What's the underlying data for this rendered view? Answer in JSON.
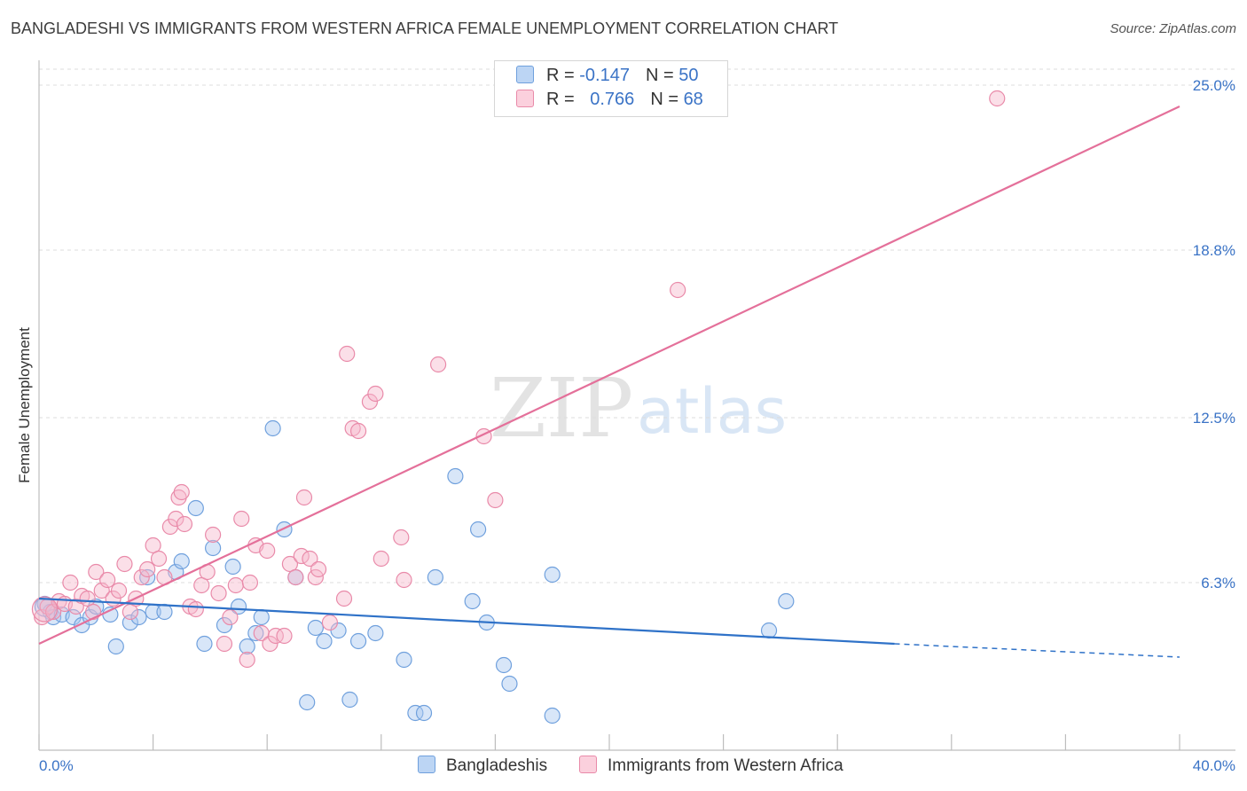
{
  "title": "BANGLADESHI VS IMMIGRANTS FROM WESTERN AFRICA FEMALE UNEMPLOYMENT CORRELATION CHART",
  "source": "Source: ZipAtlas.com",
  "watermark": {
    "zip": "ZIP",
    "atlas": "atlas"
  },
  "legend": {
    "rows": [
      {
        "r_label": "R = ",
        "r_value": "-0.147",
        "n_label": "N = ",
        "n_value": "50",
        "color": "#a9c8f0"
      },
      {
        "r_label": "R = ",
        "r_value": "0.766",
        "n_label": "N = ",
        "n_value": "68",
        "color": "#f6b8cc"
      }
    ]
  },
  "chart_data": {
    "type": "scatter",
    "title": "BANGLADESHI VS IMMIGRANTS FROM WESTERN AFRICA FEMALE UNEMPLOYMENT CORRELATION CHART",
    "xlabel": "",
    "ylabel": "Female Unemployment",
    "xlim": [
      0,
      40
    ],
    "ylim": [
      0,
      25.6
    ],
    "x_tick_labels": [
      "0.0%",
      "40.0%"
    ],
    "y_ticks": [
      6.3,
      12.5,
      18.8,
      25.0
    ],
    "y_tick_labels": [
      "6.3%",
      "12.5%",
      "18.8%",
      "25.0%"
    ],
    "grid": true,
    "series": [
      {
        "name": "Bangladeshis",
        "color": "#a9c8f0",
        "stroke": "#6fa0dd",
        "line_color": "#2f72c8",
        "trend": {
          "x0": 0,
          "y0": 5.7,
          "x1": 30,
          "y1": 4.0,
          "dash_x1": 40,
          "dash_y1": 3.5
        },
        "points": [
          [
            0.2,
            5.5
          ],
          [
            0.4,
            5.2
          ],
          [
            0.5,
            5.0
          ],
          [
            0.8,
            5.1
          ],
          [
            1.2,
            5.0
          ],
          [
            1.5,
            4.7
          ],
          [
            1.8,
            5.0
          ],
          [
            2.0,
            5.4
          ],
          [
            2.5,
            5.1
          ],
          [
            2.7,
            3.9
          ],
          [
            3.2,
            4.8
          ],
          [
            3.5,
            5.0
          ],
          [
            3.8,
            6.5
          ],
          [
            4.0,
            5.2
          ],
          [
            4.4,
            5.2
          ],
          [
            4.8,
            6.7
          ],
          [
            5.0,
            7.1
          ],
          [
            5.5,
            9.1
          ],
          [
            5.8,
            4.0
          ],
          [
            6.1,
            7.6
          ],
          [
            6.5,
            4.7
          ],
          [
            6.8,
            6.9
          ],
          [
            7.0,
            5.4
          ],
          [
            7.3,
            3.9
          ],
          [
            7.6,
            4.4
          ],
          [
            7.8,
            5.0
          ],
          [
            8.2,
            12.1
          ],
          [
            8.6,
            8.3
          ],
          [
            9.0,
            6.5
          ],
          [
            9.4,
            1.8
          ],
          [
            9.7,
            4.6
          ],
          [
            10.0,
            4.1
          ],
          [
            10.5,
            4.5
          ],
          [
            10.9,
            1.9
          ],
          [
            11.2,
            4.1
          ],
          [
            11.8,
            4.4
          ],
          [
            12.8,
            3.4
          ],
          [
            13.2,
            1.4
          ],
          [
            13.5,
            1.4
          ],
          [
            13.9,
            6.5
          ],
          [
            14.6,
            10.3
          ],
          [
            15.2,
            5.6
          ],
          [
            15.4,
            8.3
          ],
          [
            15.7,
            4.8
          ],
          [
            16.3,
            3.2
          ],
          [
            16.5,
            2.5
          ],
          [
            18.0,
            6.6
          ],
          [
            18.0,
            1.3
          ],
          [
            25.6,
            4.5
          ],
          [
            26.2,
            5.6
          ]
        ]
      },
      {
        "name": "Immigrants from Western Africa",
        "color": "#f6b8cc",
        "stroke": "#e98aa9",
        "line_color": "#e4709a",
        "trend": {
          "x0": 0,
          "y0": 4.0,
          "x1": 40,
          "y1": 24.2
        },
        "points": [
          [
            0.1,
            5.0
          ],
          [
            0.3,
            5.4
          ],
          [
            0.5,
            5.2
          ],
          [
            0.7,
            5.6
          ],
          [
            0.9,
            5.5
          ],
          [
            1.1,
            6.3
          ],
          [
            1.3,
            5.4
          ],
          [
            1.5,
            5.8
          ],
          [
            1.7,
            5.7
          ],
          [
            1.9,
            5.2
          ],
          [
            2.0,
            6.7
          ],
          [
            2.2,
            6.0
          ],
          [
            2.4,
            6.4
          ],
          [
            2.6,
            5.7
          ],
          [
            2.8,
            6.0
          ],
          [
            3.0,
            7.0
          ],
          [
            3.2,
            5.2
          ],
          [
            3.4,
            5.7
          ],
          [
            3.6,
            6.5
          ],
          [
            3.8,
            6.8
          ],
          [
            4.0,
            7.7
          ],
          [
            4.2,
            7.2
          ],
          [
            4.4,
            6.5
          ],
          [
            4.6,
            8.4
          ],
          [
            4.8,
            8.7
          ],
          [
            4.9,
            9.5
          ],
          [
            5.0,
            9.7
          ],
          [
            5.1,
            8.5
          ],
          [
            5.3,
            5.4
          ],
          [
            5.5,
            5.3
          ],
          [
            5.7,
            6.2
          ],
          [
            5.9,
            6.7
          ],
          [
            6.1,
            8.1
          ],
          [
            6.3,
            5.9
          ],
          [
            6.5,
            4.0
          ],
          [
            6.7,
            5.0
          ],
          [
            6.9,
            6.2
          ],
          [
            7.1,
            8.7
          ],
          [
            7.3,
            3.4
          ],
          [
            7.4,
            6.3
          ],
          [
            7.6,
            7.7
          ],
          [
            7.8,
            4.4
          ],
          [
            8.0,
            7.5
          ],
          [
            8.1,
            4.0
          ],
          [
            8.3,
            4.3
          ],
          [
            8.6,
            4.3
          ],
          [
            8.8,
            7.0
          ],
          [
            9.0,
            6.5
          ],
          [
            9.2,
            7.3
          ],
          [
            9.3,
            9.5
          ],
          [
            9.5,
            7.2
          ],
          [
            9.7,
            6.5
          ],
          [
            9.8,
            6.8
          ],
          [
            10.2,
            4.8
          ],
          [
            10.7,
            5.7
          ],
          [
            10.8,
            14.9
          ],
          [
            11.0,
            12.1
          ],
          [
            11.2,
            12.0
          ],
          [
            11.6,
            13.1
          ],
          [
            11.8,
            13.4
          ],
          [
            12.0,
            7.2
          ],
          [
            12.7,
            8.0
          ],
          [
            12.8,
            6.4
          ],
          [
            14.0,
            14.5
          ],
          [
            15.6,
            11.8
          ],
          [
            16.0,
            9.4
          ],
          [
            22.4,
            17.3
          ],
          [
            33.6,
            24.5
          ]
        ]
      }
    ]
  },
  "bottom_legend": [
    "Bangladeshis",
    "Immigrants from Western Africa"
  ]
}
